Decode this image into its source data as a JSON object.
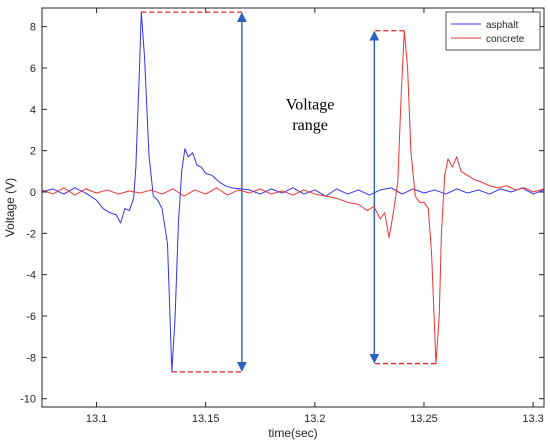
{
  "chart_data": {
    "type": "line",
    "title": "",
    "xlabel": "time(sec)",
    "ylabel": "Voltage (V)",
    "xlim": [
      13.075,
      13.305
    ],
    "ylim": [
      -10.4,
      8.9
    ],
    "x_ticks": [
      13.1,
      13.15,
      13.2,
      13.25,
      13.3
    ],
    "x_tick_labels": [
      "13.1",
      "13.15",
      "13.2",
      "13.25",
      "13.3"
    ],
    "y_ticks": [
      8,
      6,
      4,
      2,
      0,
      -2,
      -4,
      -6,
      -8,
      -10
    ],
    "y_tick_labels": [
      "8",
      "6",
      "4",
      "2",
      "0",
      "-2",
      "-4",
      "-6",
      "-8",
      "-10"
    ],
    "grid": false,
    "legend": {
      "placement": "top-right",
      "entries": [
        "asphalt",
        "concrete"
      ]
    },
    "series": [
      {
        "name": "asphalt",
        "color": "#3333ee",
        "points": [
          [
            13.075,
            0.0
          ],
          [
            13.08,
            0.15
          ],
          [
            13.085,
            -0.1
          ],
          [
            13.09,
            0.2
          ],
          [
            13.095,
            -0.05
          ],
          [
            13.1,
            -0.4
          ],
          [
            13.103,
            -0.8
          ],
          [
            13.106,
            -1.0
          ],
          [
            13.109,
            -1.1
          ],
          [
            13.111,
            -1.5
          ],
          [
            13.113,
            -0.8
          ],
          [
            13.115,
            -0.9
          ],
          [
            13.117,
            -0.3
          ],
          [
            13.118,
            1.2
          ],
          [
            13.1195,
            5.5
          ],
          [
            13.1205,
            8.7
          ],
          [
            13.122,
            6.5
          ],
          [
            13.124,
            1.8
          ],
          [
            13.126,
            -0.2
          ],
          [
            13.128,
            -0.4
          ],
          [
            13.13,
            -0.8
          ],
          [
            13.1325,
            -2.5
          ],
          [
            13.1345,
            -8.7
          ],
          [
            13.136,
            -6.0
          ],
          [
            13.1375,
            -1.5
          ],
          [
            13.139,
            1.0
          ],
          [
            13.1405,
            2.1
          ],
          [
            13.142,
            1.7
          ],
          [
            13.144,
            1.9
          ],
          [
            13.146,
            1.3
          ],
          [
            13.148,
            1.2
          ],
          [
            13.15,
            0.9
          ],
          [
            13.153,
            0.8
          ],
          [
            13.156,
            0.5
          ],
          [
            13.159,
            0.3
          ],
          [
            13.162,
            0.2
          ],
          [
            13.166,
            0.15
          ],
          [
            13.17,
            0.1
          ],
          [
            13.175,
            -0.1
          ],
          [
            13.18,
            0.15
          ],
          [
            13.185,
            -0.05
          ],
          [
            13.19,
            0.2
          ],
          [
            13.195,
            -0.1
          ],
          [
            13.2,
            0.1
          ],
          [
            13.205,
            -0.2
          ],
          [
            13.21,
            0.15
          ],
          [
            13.215,
            -0.1
          ],
          [
            13.22,
            0.1
          ],
          [
            13.225,
            -0.15
          ],
          [
            13.23,
            0.1
          ],
          [
            13.235,
            0.2
          ],
          [
            13.24,
            -0.1
          ],
          [
            13.245,
            0.15
          ],
          [
            13.25,
            -0.05
          ],
          [
            13.255,
            0.1
          ],
          [
            13.26,
            -0.1
          ],
          [
            13.265,
            0.15
          ],
          [
            13.27,
            -0.05
          ],
          [
            13.275,
            0.1
          ],
          [
            13.28,
            -0.1
          ],
          [
            13.285,
            0.15
          ],
          [
            13.29,
            0.0
          ],
          [
            13.295,
            0.2
          ],
          [
            13.3,
            -0.1
          ],
          [
            13.305,
            0.1
          ]
        ]
      },
      {
        "name": "concrete",
        "color": "#ee3333",
        "points": [
          [
            13.075,
            0.1
          ],
          [
            13.08,
            -0.1
          ],
          [
            13.085,
            0.2
          ],
          [
            13.09,
            -0.15
          ],
          [
            13.095,
            0.15
          ],
          [
            13.1,
            -0.05
          ],
          [
            13.105,
            0.1
          ],
          [
            13.11,
            -0.1
          ],
          [
            13.115,
            0.05
          ],
          [
            13.12,
            -0.05
          ],
          [
            13.125,
            0.1
          ],
          [
            13.13,
            -0.1
          ],
          [
            13.135,
            0.15
          ],
          [
            13.14,
            -0.2
          ],
          [
            13.145,
            0.1
          ],
          [
            13.15,
            -0.1
          ],
          [
            13.155,
            0.2
          ],
          [
            13.16,
            -0.15
          ],
          [
            13.165,
            0.1
          ],
          [
            13.17,
            -0.05
          ],
          [
            13.175,
            0.15
          ],
          [
            13.18,
            -0.1
          ],
          [
            13.185,
            0.05
          ],
          [
            13.19,
            -0.15
          ],
          [
            13.195,
            0.1
          ],
          [
            13.2,
            -0.1
          ],
          [
            13.205,
            -0.2
          ],
          [
            13.21,
            -0.3
          ],
          [
            13.215,
            -0.5
          ],
          [
            13.22,
            -0.6
          ],
          [
            13.224,
            -0.9
          ],
          [
            13.227,
            -0.7
          ],
          [
            13.23,
            -1.3
          ],
          [
            13.232,
            -1.0
          ],
          [
            13.234,
            -2.2
          ],
          [
            13.236,
            -1.0
          ],
          [
            13.238,
            0.5
          ],
          [
            13.2395,
            4.5
          ],
          [
            13.241,
            7.8
          ],
          [
            13.2425,
            6.0
          ],
          [
            13.244,
            2.0
          ],
          [
            13.246,
            -0.2
          ],
          [
            13.248,
            -0.5
          ],
          [
            13.25,
            -0.5
          ],
          [
            13.252,
            -0.8
          ],
          [
            13.2535,
            -3.0
          ],
          [
            13.2555,
            -8.3
          ],
          [
            13.257,
            -6.0
          ],
          [
            13.258,
            -2.0
          ],
          [
            13.2595,
            0.8
          ],
          [
            13.261,
            1.6
          ],
          [
            13.263,
            1.2
          ],
          [
            13.265,
            1.7
          ],
          [
            13.267,
            1.0
          ],
          [
            13.27,
            0.8
          ],
          [
            13.273,
            0.6
          ],
          [
            13.276,
            0.5
          ],
          [
            13.28,
            0.3
          ],
          [
            13.284,
            0.2
          ],
          [
            13.288,
            0.3
          ],
          [
            13.292,
            0.1
          ],
          [
            13.296,
            0.2
          ],
          [
            13.3,
            0.0
          ],
          [
            13.305,
            0.15
          ]
        ]
      }
    ],
    "annotations": [
      {
        "label_lines": [
          "Voltage",
          "range"
        ],
        "color": "#2b5fc2"
      }
    ]
  }
}
